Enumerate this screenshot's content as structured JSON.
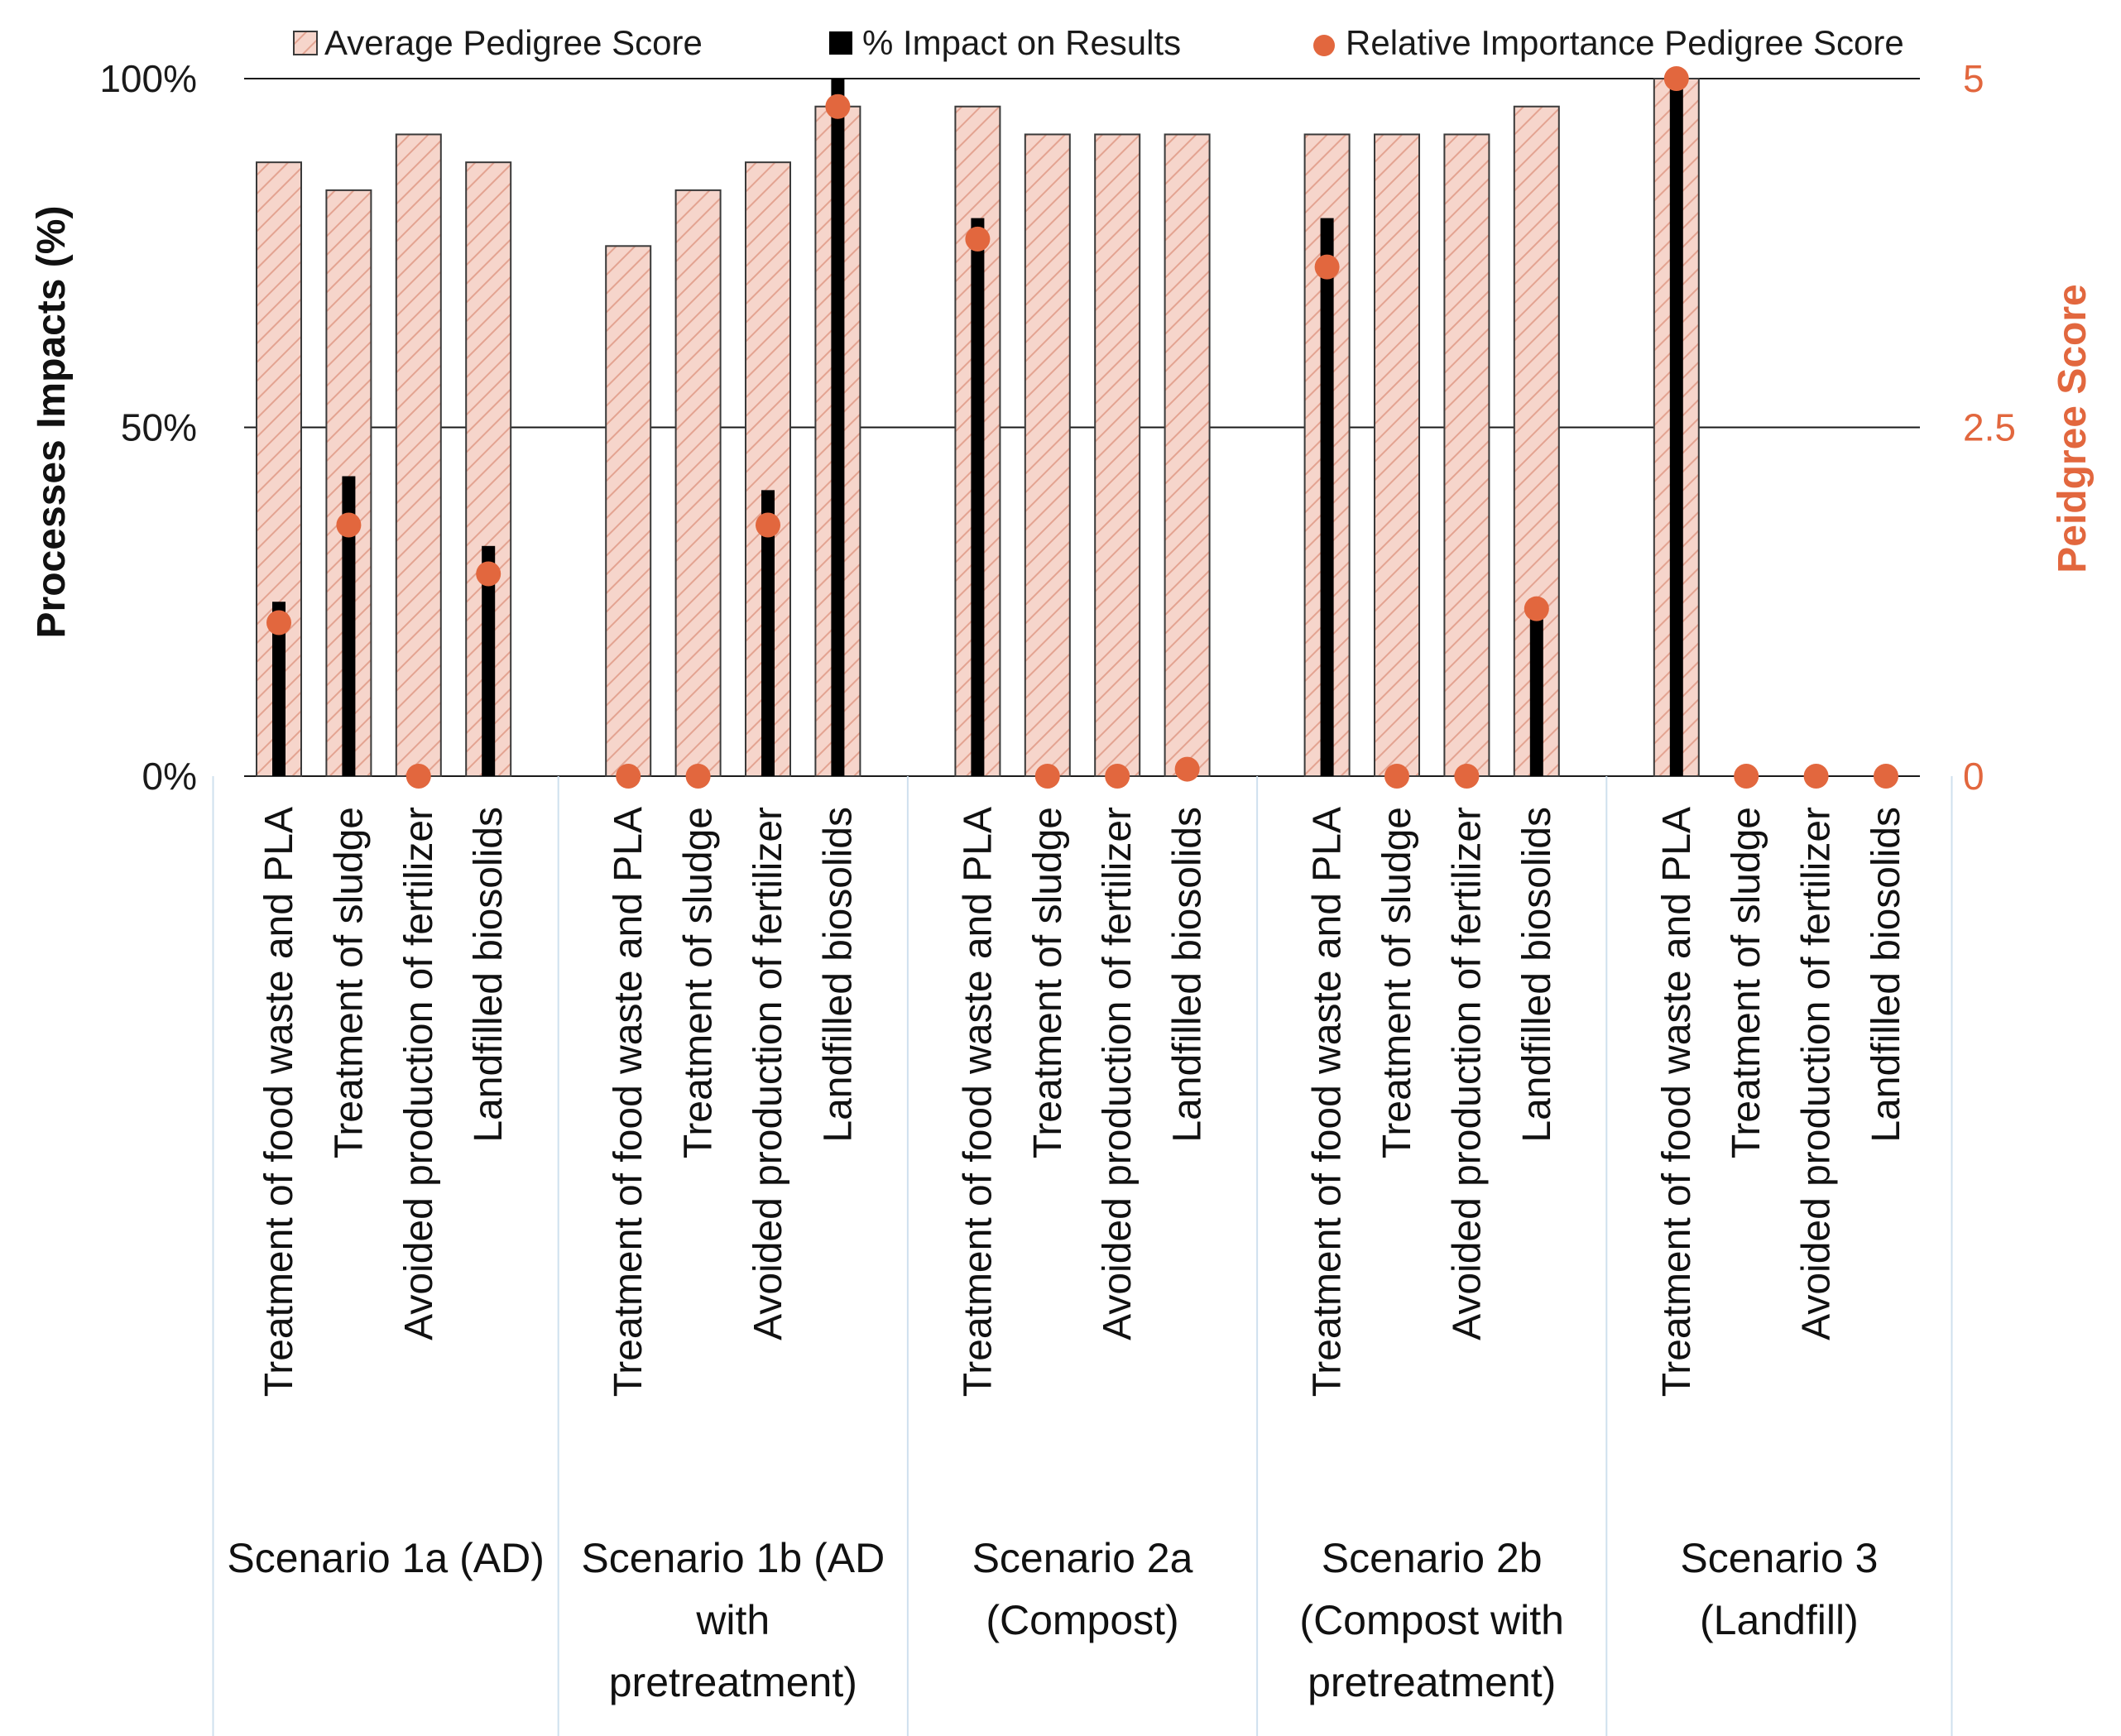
{
  "chart_data": {
    "type": "bar",
    "left_axis": {
      "label": "Processes Impacts (%)",
      "ticks": [
        "0%",
        "50%",
        "100%"
      ],
      "range": [
        0,
        100
      ]
    },
    "right_axis": {
      "label": "Peidgree Score",
      "ticks": [
        "0",
        "2.5",
        "5"
      ],
      "range": [
        0,
        5
      ]
    },
    "legend": [
      {
        "key": "avg",
        "label": "Average Pedigree Score"
      },
      {
        "key": "impact",
        "label": "% Impact on Results"
      },
      {
        "key": "rel",
        "label": "Relative Importance Pedigree Score"
      }
    ],
    "legend_position": "top",
    "gridlines": [
      0,
      50,
      100
    ],
    "groups": [
      {
        "label_lines": [
          "Scenario 1a (AD)"
        ],
        "categories": [
          "Treatment of food waste and PLA",
          "Treatment of sludge",
          "Avoided production of fertilizer",
          "Landfilled biosolids"
        ]
      },
      {
        "label_lines": [
          "Scenario 1b (AD",
          "with",
          "pretreatment)"
        ],
        "categories": [
          "Treatment of food waste and PLA",
          "Treatment of sludge",
          "Avoided production of fertilizer",
          "Landfilled biosolids"
        ]
      },
      {
        "label_lines": [
          "Scenario 2a",
          "(Compost)"
        ],
        "categories": [
          "Treatment of food waste and PLA",
          "Treatment of sludge",
          "Avoided production of fertilizer",
          "Landfilled biosolids"
        ]
      },
      {
        "label_lines": [
          "Scenario 2b",
          "(Compost with",
          "pretreatment)"
        ],
        "categories": [
          "Treatment of food waste and PLA",
          "Treatment of sludge",
          "Avoided production of fertilizer",
          "Landfilled biosolids"
        ]
      },
      {
        "label_lines": [
          "Scenario 3",
          "(Landfill)"
        ],
        "categories": [
          "Treatment of food waste and PLA",
          "Treatment of sludge",
          "Avoided production of fertilizer",
          "Landfilled biosolids"
        ]
      }
    ],
    "series": [
      {
        "key": "avg",
        "axis": "right",
        "values": [
          4.4,
          4.2,
          4.6,
          4.4,
          3.8,
          4.2,
          4.4,
          4.8,
          4.8,
          4.6,
          4.6,
          4.6,
          4.6,
          4.6,
          4.6,
          4.8,
          5.0,
          0,
          0,
          0
        ]
      },
      {
        "key": "impact",
        "axis": "left",
        "values": [
          25,
          43,
          0,
          33,
          0,
          0,
          41,
          100,
          80,
          0,
          0,
          0,
          80,
          0,
          0,
          25,
          100,
          0,
          0,
          0
        ]
      },
      {
        "key": "rel",
        "axis": "right",
        "values": [
          1.1,
          1.8,
          0,
          1.45,
          0,
          0,
          1.8,
          4.8,
          3.85,
          0,
          0,
          0.05,
          3.65,
          0,
          0,
          1.2,
          5.0,
          0,
          0,
          0
        ]
      }
    ],
    "colors": {
      "avg_fill": "#f6d5cb",
      "avg_hatch": "#e3a391",
      "avg_border": "#3a3a3a",
      "impact": "#000000",
      "rel": "#e2673e",
      "right_axis": "#e2673e",
      "grid": "#1a1a1a",
      "separator": "#cfe0ee"
    }
  }
}
